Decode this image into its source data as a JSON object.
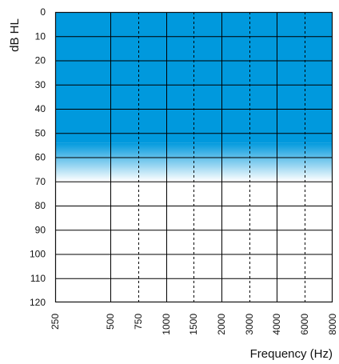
{
  "chart_data": {
    "type": "audiogram",
    "ylabel": "dB HL",
    "xlabel": "Frequency (Hz)",
    "y_ticks": [
      0,
      10,
      20,
      30,
      40,
      50,
      60,
      70,
      80,
      90,
      100,
      110,
      120
    ],
    "ylim": [
      0,
      120
    ],
    "y_inverted": true,
    "x_ticks": [
      "250",
      "500",
      "750",
      "1000",
      "1500",
      "2000",
      "3000",
      "4000",
      "6000",
      "8000"
    ],
    "x_major": [
      "250",
      "500",
      "1000",
      "2000",
      "4000",
      "8000"
    ],
    "x_minor_dashed": [
      "750",
      "1500",
      "3000",
      "6000"
    ],
    "shaded_region": {
      "from_db": 0,
      "solid_to_db": 54,
      "fade_to_db": 70,
      "color": "#0099dd"
    },
    "grid": true
  },
  "colors": {
    "fill": "#0099dd",
    "grid": "#000000",
    "frame": "#111111"
  }
}
